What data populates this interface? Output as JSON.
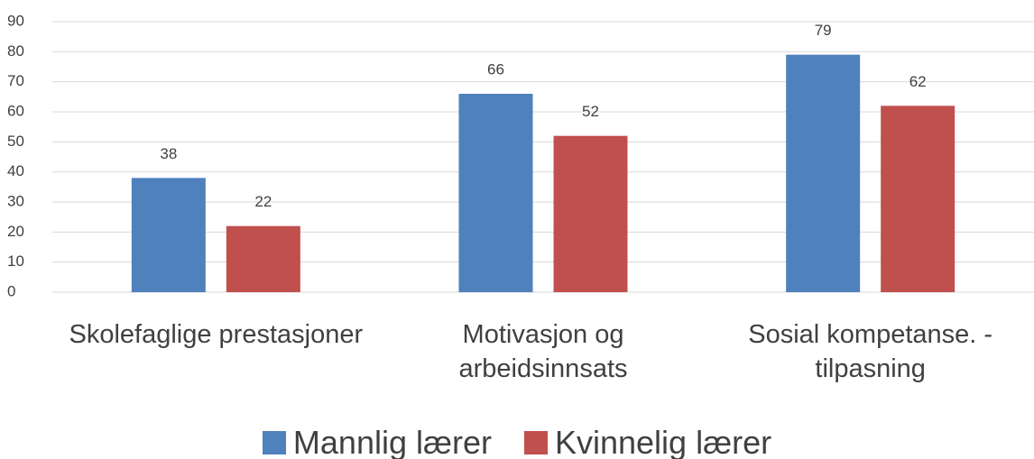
{
  "chart_data": {
    "type": "bar",
    "categories": [
      "Skolefaglige prestasjoner",
      "Motivasjon og arbeidsinnsats",
      "Sosial kompetanse. - tilpasning"
    ],
    "series": [
      {
        "name": "Mannlig lærer",
        "color": "#4f81bd",
        "values": [
          38,
          66,
          79
        ]
      },
      {
        "name": "Kvinnelig lærer",
        "color": "#c0504d",
        "values": [
          22,
          52,
          62
        ]
      }
    ],
    "ylim": [
      0,
      90
    ],
    "yticks": [
      0,
      10,
      20,
      30,
      40,
      50,
      60,
      70,
      80,
      90
    ],
    "grid": true,
    "legend": "bottom"
  }
}
